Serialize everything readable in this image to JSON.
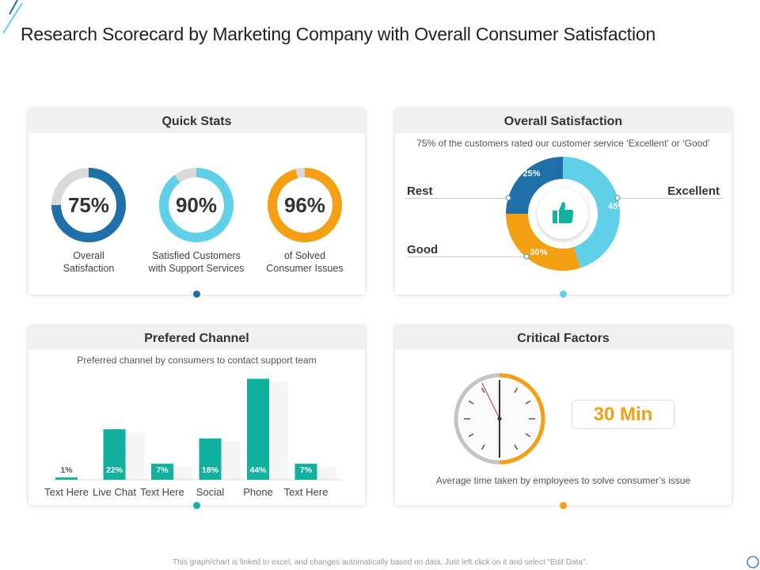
{
  "title": "Research Scorecard by Marketing Company with Overall Consumer Satisfaction",
  "colors": {
    "dark_blue": "#1f6fa8",
    "light_blue": "#5fd0e8",
    "orange": "#f5a012",
    "teal": "#12b09f",
    "gray": "#d9d9d9"
  },
  "quick_stats": {
    "header": "Quick Stats",
    "items": [
      {
        "value": "75%",
        "percent": 75,
        "label1": "Overall",
        "label2": "Satisfaction",
        "color": "#1f6fa8"
      },
      {
        "value": "90%",
        "percent": 90,
        "label1": "Satisfied Customers",
        "label2": "with Support Services",
        "color": "#5fd0e8"
      },
      {
        "value": "96%",
        "percent": 96,
        "label1": "of Solved",
        "label2": "Consumer Issues",
        "color": "#f5a012"
      }
    ]
  },
  "overall_satisfaction": {
    "header": "Overall Satisfaction",
    "subtitle": "75% of the customers rated our customer service ‘Excellent’ or ‘Good’",
    "icon": "thumbs-up-icon",
    "chart_data": {
      "type": "pie",
      "series": [
        {
          "name": "Excellent",
          "value": 45,
          "label": "45%",
          "color": "#5fd0e8"
        },
        {
          "name": "Good",
          "value": 30,
          "label": "30%",
          "color": "#f5a012"
        },
        {
          "name": "Rest",
          "value": 25,
          "label": "25%",
          "color": "#1f6fa8"
        }
      ]
    }
  },
  "preferred_channel": {
    "header": "Prefered Channel",
    "subtitle": "Preferred channel by consumers to contact support team",
    "chart_data": {
      "type": "bar",
      "categories": [
        "Text Here",
        "Live Chat",
        "Text Here",
        "Social",
        "Phone",
        "Text Here"
      ],
      "values": [
        1,
        22,
        7,
        18,
        44,
        7
      ],
      "labels": [
        "1%",
        "22%",
        "7%",
        "18%",
        "44%",
        "7%"
      ],
      "color": "#12b09f"
    }
  },
  "critical_factors": {
    "header": "Critical Factors",
    "time": "30 Min",
    "caption": "Average  time taken by employees to solve consumer’s issue",
    "clock_fill": 0.5
  },
  "footer": "This graph/chart is linked to excel, and changes automatically based on data. Just left click on it and select “Edit Data”."
}
